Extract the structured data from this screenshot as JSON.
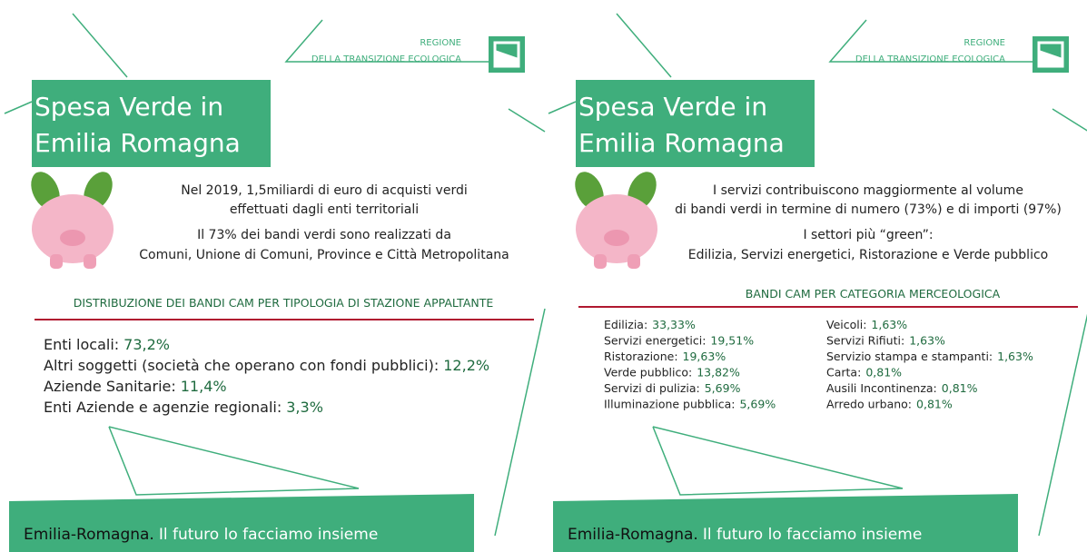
{
  "panels": [
    {
      "region": [
        "REGIONE",
        "DELLA TRANSIZIONE ECOLOGICA"
      ],
      "title": [
        "Spesa Verde in",
        "Emilia Romagna"
      ],
      "intro": [
        "Nel 2019, 1,5miliardi di euro di acquisti verdi",
        "effettuati dagli enti territoriali",
        "Il 73% dei bandi verdi sono realizzati da",
        "Comuni, Unione di Comuni, Province e Città Metropolitana"
      ],
      "heading": "DISTRIBUZIONE DEI BANDI CAM PER TIPOLOGIA DI STAZIONE APPALTANTE",
      "columns": [
        [
          {
            "label": "Enti locali:",
            "value": "73,2%"
          },
          {
            "label": "Altri soggetti (società che operano con fondi pubblici):",
            "value": "12,2%"
          },
          {
            "label": "Aziende Sanitarie:",
            "value": "11,4%"
          },
          {
            "label": "Enti Aziende e agenzie regionali:",
            "value": "3,3%"
          }
        ]
      ],
      "footer": {
        "brand": "Emilia-Romagna.",
        "slogan": "Il futuro lo facciamo insieme"
      }
    },
    {
      "region": [
        "REGIONE",
        "DELLA TRANSIZIONE ECOLOGICA"
      ],
      "title": [
        "Spesa Verde in",
        "Emilia Romagna"
      ],
      "intro": [
        "I servizi contribuiscono maggiormente al volume",
        "di bandi verdi in termine di numero (73%) e di importi (97%)",
        "I settori più “green”:",
        "Edilizia, Servizi energetici, Ristorazione e Verde pubblico"
      ],
      "heading": "BANDI CAM PER CATEGORIA MERCEOLOGICA",
      "columns": [
        [
          {
            "label": "Edilizia:",
            "value": "33,33%"
          },
          {
            "label": "Servizi energetici:",
            "value": "19,51%"
          },
          {
            "label": "Ristorazione:",
            "value": "19,63%"
          },
          {
            "label": "Verde pubblico:",
            "value": "13,82%"
          },
          {
            "label": "Servizi di pulizia:",
            "value": "5,69%"
          },
          {
            "label": "Illuminazione pubblica:",
            "value": "5,69%"
          }
        ],
        [
          {
            "label": "Veicoli:",
            "value": "1,63%"
          },
          {
            "label": "Servizi Rifiuti:",
            "value": "1,63%"
          },
          {
            "label": "Servizio stampa e stampanti:",
            "value": "1,63%"
          },
          {
            "label": "Carta:",
            "value": "0,81%"
          },
          {
            "label": "Ausili Incontinenza:",
            "value": "0,81%"
          },
          {
            "label": "Arredo urbano:",
            "value": "0,81%"
          }
        ]
      ],
      "footer": {
        "brand": "Emilia-Romagna.",
        "slogan": "Il futuro lo facciamo insieme"
      }
    }
  ]
}
